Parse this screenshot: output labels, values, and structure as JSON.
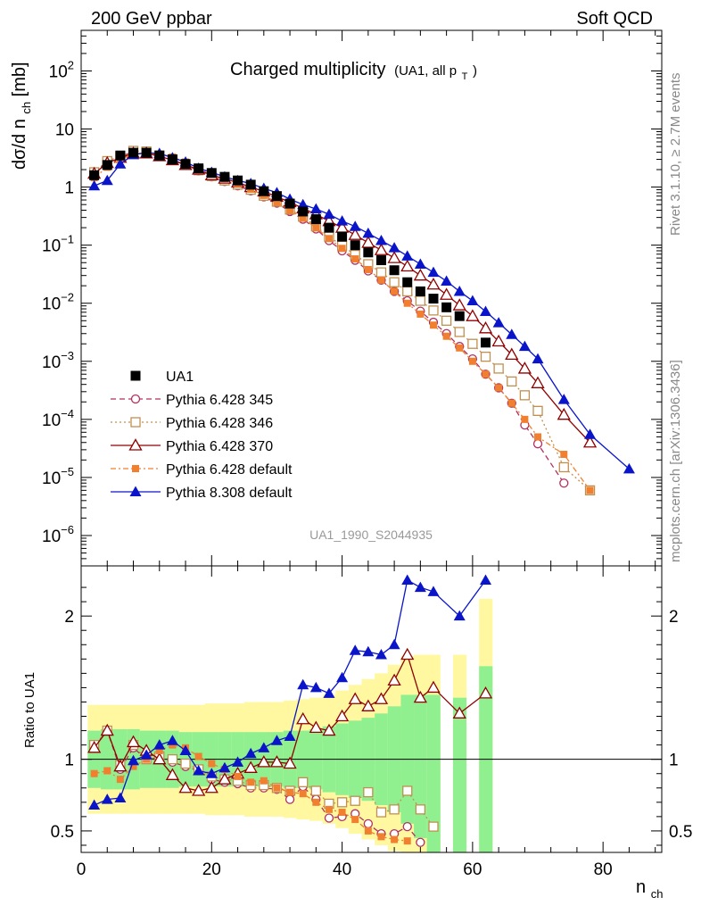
{
  "header": {
    "left": "200 GeV ppbar",
    "right": "Soft QCD"
  },
  "chart_data": {
    "type": "line",
    "title": "Charged multiplicity",
    "title_suffix": "(UA1, all p",
    "title_suffix_sub": "T",
    "title_suffix_end": ")",
    "ylabel_top": "dσ/d n",
    "ylabel_top_sub": "ch",
    "ylabel_top_unit": " [mb]",
    "ylabel_ratio": "Ratio to UA1",
    "xlabel": "n",
    "xlabel_sub": "ch",
    "watermark": "UA1_1990_S2044935",
    "side_top": "Rivet 3.1.10, ≥ 2.7M events",
    "side_bottom": "mcplots.cern.ch [arXiv:1306.3436]",
    "xlim": [
      0,
      89
    ],
    "ylim_top": [
      3e-07,
      500
    ],
    "ylim_ratio": [
      0.35,
      2.35
    ],
    "log_y_top": true,
    "x_ticks": [
      "0",
      "20",
      "40",
      "60",
      "80"
    ],
    "x_tick_values": [
      0,
      20,
      40,
      60,
      80
    ],
    "y_ticks_top": [
      {
        "v": 1e-06,
        "base": "10",
        "exp": "−6"
      },
      {
        "v": 1e-05,
        "base": "10",
        "exp": "−5"
      },
      {
        "v": 0.0001,
        "base": "10",
        "exp": "−4"
      },
      {
        "v": 0.001,
        "base": "10",
        "exp": "−3"
      },
      {
        "v": 0.01,
        "base": "10",
        "exp": "−2"
      },
      {
        "v": 0.1,
        "base": "10",
        "exp": "−1"
      },
      {
        "v": 1,
        "base": "1",
        "exp": ""
      },
      {
        "v": 10,
        "base": "10",
        "exp": ""
      },
      {
        "v": 100,
        "base": "10",
        "exp": "2"
      }
    ],
    "y_ticks_ratio": [
      {
        "v": 0.5,
        "label": "0.5"
      },
      {
        "v": 1,
        "label": "1"
      },
      {
        "v": 2,
        "label": "2"
      }
    ],
    "legend_position": "lower-left",
    "data": {
      "name": "UA1",
      "x": [
        2,
        4,
        6,
        8,
        10,
        12,
        14,
        16,
        18,
        20,
        22,
        24,
        26,
        28,
        30,
        32,
        34,
        36,
        38,
        40,
        42,
        44,
        46,
        48,
        50,
        52,
        54,
        56,
        58,
        62
      ],
      "y": [
        1.6,
        2.4,
        3.5,
        3.9,
        3.9,
        3.5,
        3.0,
        2.5,
        2.1,
        1.75,
        1.5,
        1.3,
        1.1,
        0.85,
        0.7,
        0.52,
        0.38,
        0.28,
        0.2,
        0.14,
        0.1,
        0.075,
        0.055,
        0.037,
        0.023,
        0.016,
        0.012,
        0.0085,
        0.006,
        0.0021
      ],
      "ratio_band_x": [
        1,
        3,
        5,
        7,
        9,
        11,
        13,
        15,
        17,
        19,
        21,
        23,
        25,
        27,
        29,
        31,
        33,
        35,
        37,
        39,
        41,
        43,
        45,
        47,
        49,
        51,
        53,
        55,
        57,
        59,
        61,
        63
      ],
      "ratio_green_hi": [
        1.2,
        1.21,
        1.21,
        1.21,
        1.2,
        1.2,
        1.2,
        1.19,
        1.19,
        1.19,
        1.19,
        1.19,
        1.19,
        1.19,
        1.19,
        1.2,
        1.2,
        1.21,
        1.23,
        1.25,
        1.27,
        1.29,
        1.32,
        1.37,
        1.45,
        1.45,
        1.45,
        null,
        1.43,
        null,
        1.65,
        1.65
      ],
      "ratio_green_lo": [
        0.8,
        0.79,
        0.79,
        0.79,
        0.8,
        0.8,
        0.8,
        0.81,
        0.81,
        0.81,
        0.81,
        0.81,
        0.81,
        0.81,
        0.81,
        0.8,
        0.8,
        0.79,
        0.77,
        0.75,
        0.73,
        0.71,
        0.68,
        0.63,
        0.55,
        0.45,
        0.35,
        null,
        0.35,
        null,
        0.35,
        0.35
      ],
      "ratio_yellow_hi": [
        1.38,
        1.38,
        1.38,
        1.38,
        1.38,
        1.38,
        1.38,
        1.38,
        1.38,
        1.39,
        1.39,
        1.39,
        1.4,
        1.4,
        1.4,
        1.41,
        1.42,
        1.43,
        1.45,
        1.48,
        1.52,
        1.56,
        1.6,
        1.66,
        1.72,
        1.73,
        1.73,
        null,
        1.73,
        null,
        2.12,
        2.12
      ],
      "ratio_yellow_lo": [
        0.62,
        0.62,
        0.62,
        0.62,
        0.62,
        0.62,
        0.62,
        0.62,
        0.62,
        0.61,
        0.61,
        0.61,
        0.6,
        0.6,
        0.6,
        0.59,
        0.58,
        0.57,
        0.55,
        0.52,
        0.48,
        0.44,
        0.4,
        0.36,
        0.35,
        0.35,
        0.35,
        null,
        0.35,
        null,
        0.35,
        0.35
      ]
    },
    "series": [
      {
        "name": "Pythia 6.428 345",
        "color": "#b03060",
        "marker": "circle-open",
        "dash": "6,4",
        "x": [
          2,
          4,
          6,
          8,
          10,
          12,
          14,
          16,
          18,
          20,
          22,
          24,
          26,
          28,
          30,
          32,
          34,
          36,
          38,
          40,
          42,
          44,
          46,
          48,
          50,
          52,
          54,
          56,
          58,
          60,
          62,
          64,
          66,
          68,
          70,
          74
        ],
        "y": [
          1.75,
          2.7,
          3.3,
          4.1,
          4.1,
          3.5,
          3.0,
          2.4,
          1.9,
          1.5,
          1.25,
          1.05,
          0.86,
          0.68,
          0.53,
          0.38,
          0.28,
          0.19,
          0.12,
          0.08,
          0.055,
          0.036,
          0.025,
          0.016,
          0.011,
          0.0073,
          0.0047,
          0.003,
          0.0018,
          0.0011,
          0.0006,
          0.00035,
          0.00019,
          8e-05,
          3.8e-05,
          8e-06
        ],
        "ratio": [
          1.09,
          1.2,
          0.93,
          1.08,
          1.0,
          1.01,
          0.98,
          0.95,
          0.92,
          0.86,
          0.84,
          0.83,
          0.8,
          0.8,
          0.79,
          0.72,
          0.81,
          0.72,
          0.59,
          0.6,
          0.62,
          0.55,
          0.48,
          0.48,
          0.53,
          0.42
        ]
      },
      {
        "name": "Pythia 6.428 346",
        "color": "#c09050",
        "marker": "square-open",
        "dash": "2,3",
        "x": [
          2,
          4,
          6,
          8,
          10,
          12,
          14,
          16,
          18,
          20,
          22,
          24,
          26,
          28,
          30,
          32,
          34,
          36,
          38,
          40,
          42,
          44,
          46,
          48,
          50,
          52,
          54,
          56,
          58,
          60,
          62,
          64,
          66,
          68,
          70,
          74,
          78
        ],
        "y": [
          1.8,
          2.8,
          3.4,
          4.2,
          4.1,
          3.5,
          3.0,
          2.45,
          1.95,
          1.55,
          1.3,
          1.1,
          0.9,
          0.71,
          0.56,
          0.41,
          0.31,
          0.21,
          0.14,
          0.098,
          0.068,
          0.047,
          0.034,
          0.023,
          0.016,
          0.011,
          0.0075,
          0.005,
          0.0032,
          0.002,
          0.0012,
          0.00075,
          0.00045,
          0.00026,
          0.00014,
          1.5e-05,
          6e-06
        ],
        "ratio": [
          1.1,
          1.2,
          0.96,
          1.1,
          1.0,
          1.02,
          1.0,
          0.97,
          0.93,
          0.88,
          0.86,
          0.85,
          0.82,
          0.82,
          0.8,
          0.78,
          0.84,
          0.78,
          0.69,
          0.7,
          0.71,
          0.77,
          0.63,
          0.65,
          0.78,
          0.65,
          0.53
        ]
      },
      {
        "name": "Pythia 6.428 370",
        "color": "#900000",
        "marker": "triangle-open",
        "dash": "",
        "x": [
          2,
          4,
          6,
          8,
          10,
          12,
          14,
          16,
          18,
          20,
          22,
          24,
          26,
          28,
          30,
          32,
          34,
          36,
          38,
          40,
          42,
          44,
          46,
          48,
          50,
          52,
          54,
          56,
          58,
          60,
          62,
          64,
          66,
          68,
          70,
          74,
          78
        ],
        "y": [
          1.7,
          2.6,
          3.2,
          3.8,
          3.8,
          3.4,
          2.9,
          2.4,
          2.0,
          1.6,
          1.4,
          1.2,
          1.0,
          0.84,
          0.68,
          0.55,
          0.43,
          0.34,
          0.26,
          0.2,
          0.15,
          0.11,
          0.082,
          0.06,
          0.043,
          0.03,
          0.021,
          0.014,
          0.0092,
          0.006,
          0.0037,
          0.0022,
          0.0013,
          0.00075,
          0.00042,
          0.00012,
          4e-05
        ],
        "ratio": [
          1.08,
          1.2,
          0.95,
          1.12,
          1.06,
          1.0,
          0.89,
          0.8,
          0.78,
          0.8,
          0.86,
          0.9,
          0.94,
          0.98,
          0.98,
          0.97,
          1.28,
          1.22,
          1.2,
          1.3,
          1.42,
          1.37,
          1.42,
          1.55,
          1.73,
          1.43,
          1.5,
          null,
          1.32,
          null,
          1.46
        ]
      },
      {
        "name": "Pythia 6.428 default",
        "color": "#f08030",
        "marker": "square-filled",
        "dash": "6,3,2,3",
        "x": [
          2,
          4,
          6,
          8,
          10,
          12,
          14,
          16,
          18,
          20,
          22,
          24,
          26,
          28,
          30,
          32,
          34,
          36,
          38,
          40,
          42,
          44,
          46,
          48,
          50,
          52,
          54,
          56,
          58,
          60,
          62,
          64,
          66,
          68,
          70,
          74,
          78
        ],
        "y": [
          1.45,
          2.2,
          3.0,
          3.7,
          3.9,
          3.7,
          3.3,
          2.7,
          2.15,
          1.7,
          1.4,
          1.15,
          0.92,
          0.72,
          0.55,
          0.4,
          0.29,
          0.2,
          0.13,
          0.088,
          0.058,
          0.038,
          0.025,
          0.016,
          0.01,
          0.0065,
          0.0042,
          0.0027,
          0.0017,
          0.001,
          0.0006,
          0.00035,
          0.00019,
          0.0001,
          5e-05,
          2.5e-05,
          6e-06
        ],
        "ratio": [
          0.9,
          0.92,
          0.86,
          0.95,
          1.0,
          1.06,
          1.1,
          1.08,
          1.02,
          0.97,
          0.93,
          0.88,
          0.84,
          0.85,
          0.8,
          0.77,
          0.76,
          0.7,
          0.65,
          0.63,
          0.58,
          0.5,
          0.46,
          0.44,
          0.43
        ]
      },
      {
        "name": "Pythia 8.308 default",
        "color": "#0a14c8",
        "marker": "triangle-filled",
        "dash": "",
        "x": [
          2,
          4,
          6,
          8,
          10,
          12,
          14,
          16,
          18,
          20,
          22,
          24,
          26,
          28,
          30,
          32,
          34,
          36,
          38,
          40,
          42,
          44,
          46,
          48,
          50,
          52,
          54,
          56,
          58,
          60,
          62,
          64,
          66,
          68,
          70,
          74,
          78,
          84
        ],
        "y": [
          1.05,
          1.3,
          2.5,
          3.6,
          3.9,
          3.8,
          3.2,
          2.7,
          2.1,
          1.8,
          1.5,
          1.3,
          1.15,
          0.95,
          0.8,
          0.62,
          0.5,
          0.42,
          0.34,
          0.26,
          0.21,
          0.16,
          0.12,
          0.09,
          0.065,
          0.047,
          0.034,
          0.024,
          0.016,
          0.011,
          0.0072,
          0.0046,
          0.0029,
          0.0018,
          0.0011,
          0.00022,
          5.5e-05,
          1.4e-05
        ],
        "ratio": [
          0.68,
          0.72,
          0.73,
          0.99,
          1.03,
          1.1,
          1.13,
          1.06,
          0.92,
          0.9,
          0.94,
          0.98,
          1.04,
          1.08,
          1.13,
          1.16,
          1.52,
          1.5,
          1.46,
          1.57,
          1.76,
          1.75,
          1.73,
          1.8,
          2.25,
          2.2,
          2.17,
          null,
          2.0,
          null,
          2.25
        ]
      }
    ]
  }
}
